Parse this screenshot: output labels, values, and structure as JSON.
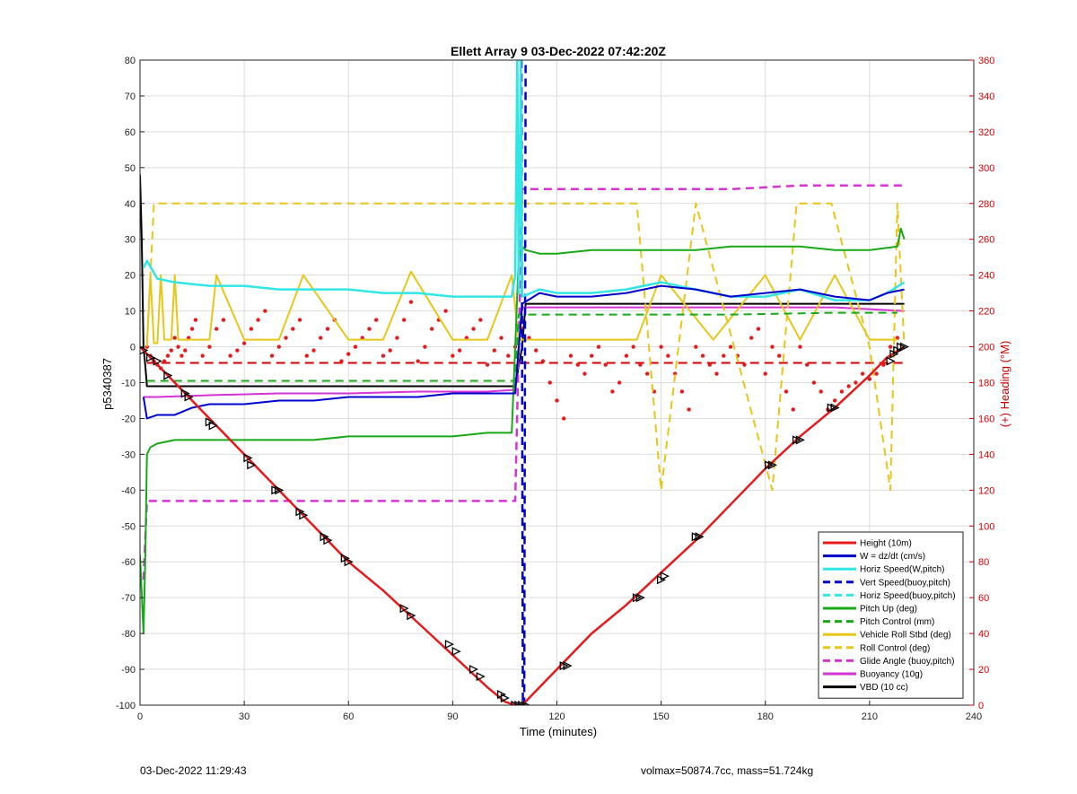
{
  "footer": {
    "left": "03-Dec-2022 11:29:43",
    "right": "volmax=50874.7cc, mass=51.724kg"
  },
  "colors": {
    "red": "#e41a1c",
    "darkred": "#d00000",
    "blue": "#0000cc",
    "cyan": "#33e6e6",
    "green": "#18a818",
    "yellow": "#e6c619",
    "magenta": "#d633d6",
    "black": "#000000"
  },
  "chart_data": {
    "type": "line",
    "title": "Ellett Array 9 03-Dec-2022 07:42:20Z",
    "xlabel": "Time (minutes)",
    "ylabel": "p5340387",
    "y2label": "(+) Heading (°M)",
    "xlim": [
      0,
      240
    ],
    "ylim": [
      -100,
      80
    ],
    "y2lim": [
      0,
      360
    ],
    "xticks": [
      0,
      30,
      60,
      90,
      120,
      150,
      180,
      210,
      240
    ],
    "yticks": [
      -100,
      -90,
      -80,
      -70,
      -60,
      -50,
      -40,
      -30,
      -20,
      -10,
      0,
      10,
      20,
      30,
      40,
      50,
      60,
      70,
      80
    ],
    "y2ticks": [
      0,
      20,
      40,
      60,
      80,
      100,
      120,
      140,
      160,
      180,
      200,
      220,
      240,
      260,
      280,
      300,
      320,
      340,
      360
    ],
    "grid": true,
    "legend_position": "bottom-right",
    "series": [
      {
        "name": "Height (10m)",
        "color": "#e41a1c",
        "style": "solid",
        "width": 2.5,
        "x": [
          0,
          1,
          5,
          10,
          20,
          30,
          40,
          50,
          60,
          70,
          80,
          90,
          100,
          105,
          108,
          110,
          115,
          120,
          130,
          140,
          150,
          160,
          170,
          180,
          190,
          200,
          210,
          215,
          220
        ],
        "y": [
          0,
          -1,
          -5,
          -10,
          -20,
          -30,
          -40,
          -50,
          -60,
          -68,
          -77,
          -86,
          -95,
          -99,
          -100,
          -100,
          -95,
          -90,
          -80,
          -72,
          -63,
          -54,
          -44,
          -34,
          -25,
          -17,
          -8,
          -3,
          0
        ]
      },
      {
        "name": "W = dz/dt (cm/s)",
        "color": "#0000cc",
        "style": "solid",
        "width": 2,
        "x": [
          1,
          2,
          5,
          10,
          15,
          20,
          30,
          40,
          50,
          60,
          70,
          80,
          90,
          100,
          108,
          110,
          115,
          120,
          130,
          140,
          150,
          160,
          170,
          180,
          190,
          200,
          210,
          215,
          220
        ],
        "y": [
          -14,
          -20,
          -19,
          -19,
          -17,
          -16,
          -16,
          -15,
          -15,
          -14,
          -14,
          -14,
          -13,
          -13,
          -13,
          12,
          15,
          14,
          14,
          15,
          17,
          16,
          14,
          15,
          16,
          14,
          13,
          15,
          16
        ]
      },
      {
        "name": "Horiz Speed(W,pitch)",
        "color": "#33e6e6",
        "style": "solid",
        "width": 2.5,
        "x": [
          1,
          2,
          5,
          10,
          20,
          30,
          40,
          50,
          60,
          70,
          80,
          90,
          100,
          107,
          108,
          108.6,
          109,
          109.6,
          110,
          115,
          120,
          130,
          140,
          150,
          160,
          170,
          180,
          190,
          200,
          210,
          215,
          220
        ],
        "y": [
          22,
          24,
          19,
          18,
          17,
          17,
          16,
          16,
          16,
          15,
          15,
          14,
          14,
          14,
          20,
          80,
          15,
          80,
          14,
          16,
          15,
          15,
          16,
          18,
          16,
          14,
          14,
          16,
          13,
          13,
          15,
          18
        ]
      },
      {
        "name": "Vert Speed(buoy,pitch)",
        "color": "#0000cc",
        "style": "dashed",
        "width": 2.5,
        "x": [
          109.8,
          110.2,
          110.6,
          111
        ],
        "y": [
          80,
          -100,
          -100,
          80
        ]
      },
      {
        "name": "Horiz Speed(buoy,pitch)",
        "color": "#33e6e6",
        "style": "dashed",
        "width": 2.5,
        "x": [
          109,
          110
        ],
        "y": [
          80,
          80
        ]
      },
      {
        "name": "Pitch Up (deg)",
        "color": "#18a818",
        "style": "solid",
        "width": 2,
        "x": [
          0,
          1,
          1.5,
          2,
          3,
          5,
          10,
          20,
          30,
          40,
          50,
          60,
          70,
          80,
          90,
          100,
          107,
          108,
          109,
          110,
          111,
          115,
          120,
          130,
          140,
          150,
          160,
          170,
          180,
          190,
          200,
          210,
          218,
          219,
          220
        ],
        "y": [
          -58,
          -80,
          -60,
          -30,
          -28,
          -27,
          -26,
          -26,
          -26,
          -26,
          -26,
          -25,
          -25,
          -25,
          -25,
          -24,
          -24,
          0,
          25,
          28,
          27,
          26,
          26,
          27,
          27,
          27,
          27,
          28,
          28,
          28,
          27,
          27,
          28,
          33,
          30
        ]
      },
      {
        "name": "Pitch Control (mm)",
        "color": "#18a818",
        "style": "dashed",
        "width": 2,
        "x": [
          2,
          30,
          60,
          90,
          108,
          109,
          111,
          140,
          170,
          200,
          218
        ],
        "y": [
          -9.5,
          -9.5,
          -9.5,
          -9.5,
          -9.5,
          9,
          9,
          9,
          9,
          9.5,
          9.5
        ]
      },
      {
        "name": "Vehicle Roll Stbd (deg)",
        "color": "#e6c619",
        "style": "solid",
        "width": 2,
        "x": [
          2,
          3,
          4,
          5,
          6,
          7,
          9,
          10,
          11,
          20,
          22,
          30,
          40,
          47,
          60,
          70,
          78,
          90,
          100,
          107,
          109,
          110,
          120,
          130,
          143,
          150,
          165,
          180,
          190,
          200,
          210,
          218
        ],
        "y": [
          1,
          20,
          1,
          1,
          20,
          2,
          2,
          20,
          2,
          2,
          20,
          2,
          2,
          20,
          2,
          2,
          21,
          2,
          2,
          20,
          2,
          2,
          2,
          2,
          2,
          20,
          2,
          20,
          2,
          20,
          2,
          2
        ]
      },
      {
        "name": "Roll Control (deg)",
        "color": "#e6c619",
        "style": "dashed",
        "width": 2,
        "x": [
          2,
          4,
          7,
          13,
          21,
          30,
          41,
          55,
          61,
          77,
          90,
          100,
          108,
          122,
          143,
          150,
          160,
          182,
          189,
          199,
          210,
          216,
          218,
          220
        ],
        "y": [
          0,
          40,
          40,
          40,
          40,
          40,
          40,
          40,
          40,
          40,
          40,
          40,
          40,
          40,
          40,
          -40,
          40,
          -40,
          40,
          40,
          0,
          -40,
          40,
          0
        ]
      },
      {
        "name": "Glide Angle (buoy,pitch)",
        "color": "#d633d6",
        "style": "dashed",
        "width": 2.5,
        "x": [
          1,
          2,
          5,
          20,
          40,
          60,
          80,
          100,
          108,
          109,
          110,
          115,
          130,
          150,
          170,
          190,
          210,
          218,
          220
        ],
        "y": [
          -65,
          -43,
          -43,
          -43,
          -43,
          -43,
          -43,
          -43,
          -43,
          0,
          44,
          44,
          44,
          44,
          44,
          45,
          45,
          45,
          45
        ]
      },
      {
        "name": "Buoyancy (10g)",
        "color": "#d633d6",
        "style": "solid",
        "width": 2,
        "x": [
          1,
          5,
          20,
          40,
          60,
          80,
          100,
          108,
          110,
          140,
          160,
          180,
          200,
          210,
          220
        ],
        "y": [
          -14,
          -14,
          -13.5,
          -13,
          -13,
          -12.5,
          -12.5,
          -12,
          11,
          11,
          11,
          11,
          11,
          10.5,
          10
        ]
      },
      {
        "name": "VBD (10 cc)",
        "color": "#000000",
        "style": "solid",
        "width": 2,
        "x": [
          0,
          0.5,
          1,
          1.5,
          2,
          10,
          50,
          100,
          108,
          110,
          111,
          140,
          170,
          200,
          220
        ],
        "y": [
          48,
          30,
          0,
          -5,
          -11,
          -11,
          -11,
          -11,
          -11,
          0,
          12,
          12,
          12,
          12,
          12
        ]
      }
    ],
    "heading_series": {
      "name": "",
      "color": "#e41a1c",
      "axis": "right",
      "style": "dots",
      "x": [
        2,
        3,
        4,
        5,
        6,
        7,
        8,
        9,
        10,
        11,
        12,
        13,
        14,
        15,
        16,
        18,
        20,
        22,
        24,
        26,
        28,
        30,
        32,
        34,
        36,
        38,
        40,
        42,
        44,
        46,
        48,
        50,
        52,
        54,
        56,
        58,
        60,
        62,
        64,
        66,
        68,
        70,
        72,
        74,
        76,
        78,
        80,
        82,
        84,
        86,
        88,
        90,
        92,
        94,
        96,
        98,
        100,
        102,
        104,
        106,
        108,
        110,
        112,
        114,
        116,
        118,
        120,
        122,
        124,
        126,
        128,
        130,
        132,
        134,
        136,
        138,
        140,
        142,
        144,
        146,
        148,
        150,
        152,
        154,
        156,
        158,
        160,
        162,
        164,
        166,
        168,
        170,
        172,
        174,
        176,
        178,
        180,
        182,
        184,
        186,
        188,
        190,
        192,
        194,
        196,
        198,
        200,
        202,
        204,
        206,
        208,
        210,
        212,
        214,
        216,
        218
      ],
      "y": [
        200,
        195,
        192,
        190,
        188,
        192,
        195,
        198,
        205,
        200,
        195,
        198,
        205,
        210,
        215,
        195,
        200,
        210,
        215,
        195,
        198,
        202,
        210,
        215,
        220,
        195,
        200,
        205,
        210,
        215,
        195,
        198,
        205,
        210,
        215,
        192,
        196,
        200,
        205,
        210,
        215,
        195,
        198,
        205,
        215,
        225,
        192,
        200,
        210,
        215,
        220,
        195,
        198,
        205,
        210,
        215,
        190,
        198,
        205,
        195,
        200,
        210,
        205,
        198,
        192,
        180,
        170,
        160,
        195,
        190,
        185,
        195,
        200,
        190,
        175,
        180,
        195,
        200,
        190,
        185,
        175,
        200,
        195,
        185,
        175,
        165,
        200,
        195,
        190,
        185,
        195,
        200,
        195,
        190,
        205,
        210,
        185,
        200,
        195,
        175,
        165,
        200,
        190,
        180,
        175,
        165,
        170,
        175,
        178,
        180,
        185,
        182,
        185,
        190,
        200,
        205
      ]
    },
    "heading_reference": {
      "color": "#d00000",
      "style": "dashed",
      "x": [
        2,
        220
      ],
      "y": [
        191,
        191
      ]
    },
    "height_markers": {
      "x": [
        1,
        3,
        5,
        8,
        13,
        14,
        20,
        21,
        31,
        32,
        39,
        40,
        46,
        47,
        53,
        54,
        59,
        60,
        76,
        78,
        89,
        91,
        96,
        98,
        104,
        105,
        108,
        109,
        110,
        111,
        122,
        123,
        143,
        144,
        150,
        151,
        160,
        161,
        181,
        182,
        189,
        190,
        199,
        200,
        216,
        217,
        218,
        219,
        220
      ],
      "y": [
        -1,
        -3,
        -4,
        -8,
        -13,
        -14,
        -21,
        -22,
        -31,
        -33,
        -40,
        -40,
        -46,
        -47,
        -53,
        -54,
        -59,
        -60,
        -73,
        -75,
        -83,
        -85,
        -90,
        -92,
        -97,
        -98,
        -100,
        -100,
        -100,
        -100,
        -89,
        -89,
        -70,
        -70,
        -65,
        -64,
        -53,
        -53,
        -33,
        -33,
        -26,
        -26,
        -17,
        -17,
        -4,
        -2,
        -1,
        0,
        0
      ]
    }
  }
}
